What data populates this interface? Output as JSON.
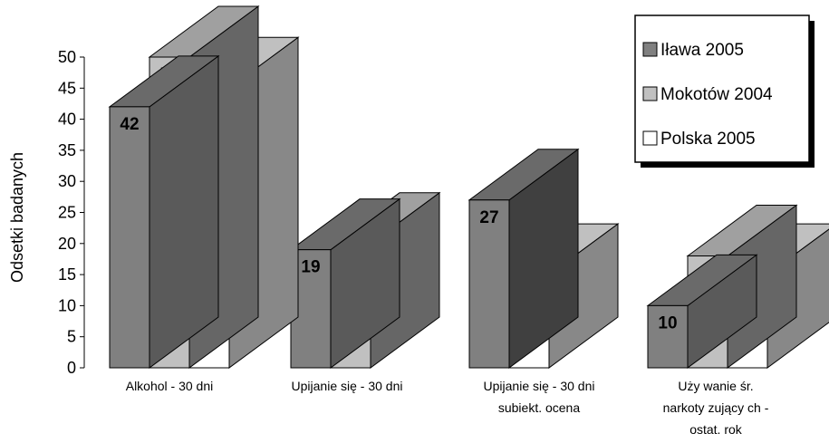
{
  "chart_data": {
    "type": "bar",
    "categories": [
      [
        "Alkohol - 30 dni"
      ],
      [
        "Upijanie się - 30 dni"
      ],
      [
        "Upijanie się - 30 dni",
        "subiekt. ocena"
      ],
      [
        "Uży wanie śr.",
        "narkoty zujący ch -",
        "ostat. rok"
      ]
    ],
    "series": [
      {
        "name": "Iława 2005",
        "values": [
          42,
          19,
          27,
          10
        ],
        "color": "#808080"
      },
      {
        "name": "Mokotów 2004",
        "values": [
          50,
          20,
          null,
          18
        ],
        "color": "#c0c0c0"
      },
      {
        "name": "Polska 2005",
        "values": [
          45,
          null,
          15,
          15
        ],
        "color": "#ffffff"
      }
    ],
    "ylabel": "Odsetki badanych",
    "ylim": [
      0,
      50
    ],
    "yticks": [
      "0",
      "5",
      "10",
      "15",
      "20",
      "25",
      "30",
      "35",
      "40",
      "45",
      "50"
    ],
    "grid": false,
    "legend_position": "top-right"
  }
}
